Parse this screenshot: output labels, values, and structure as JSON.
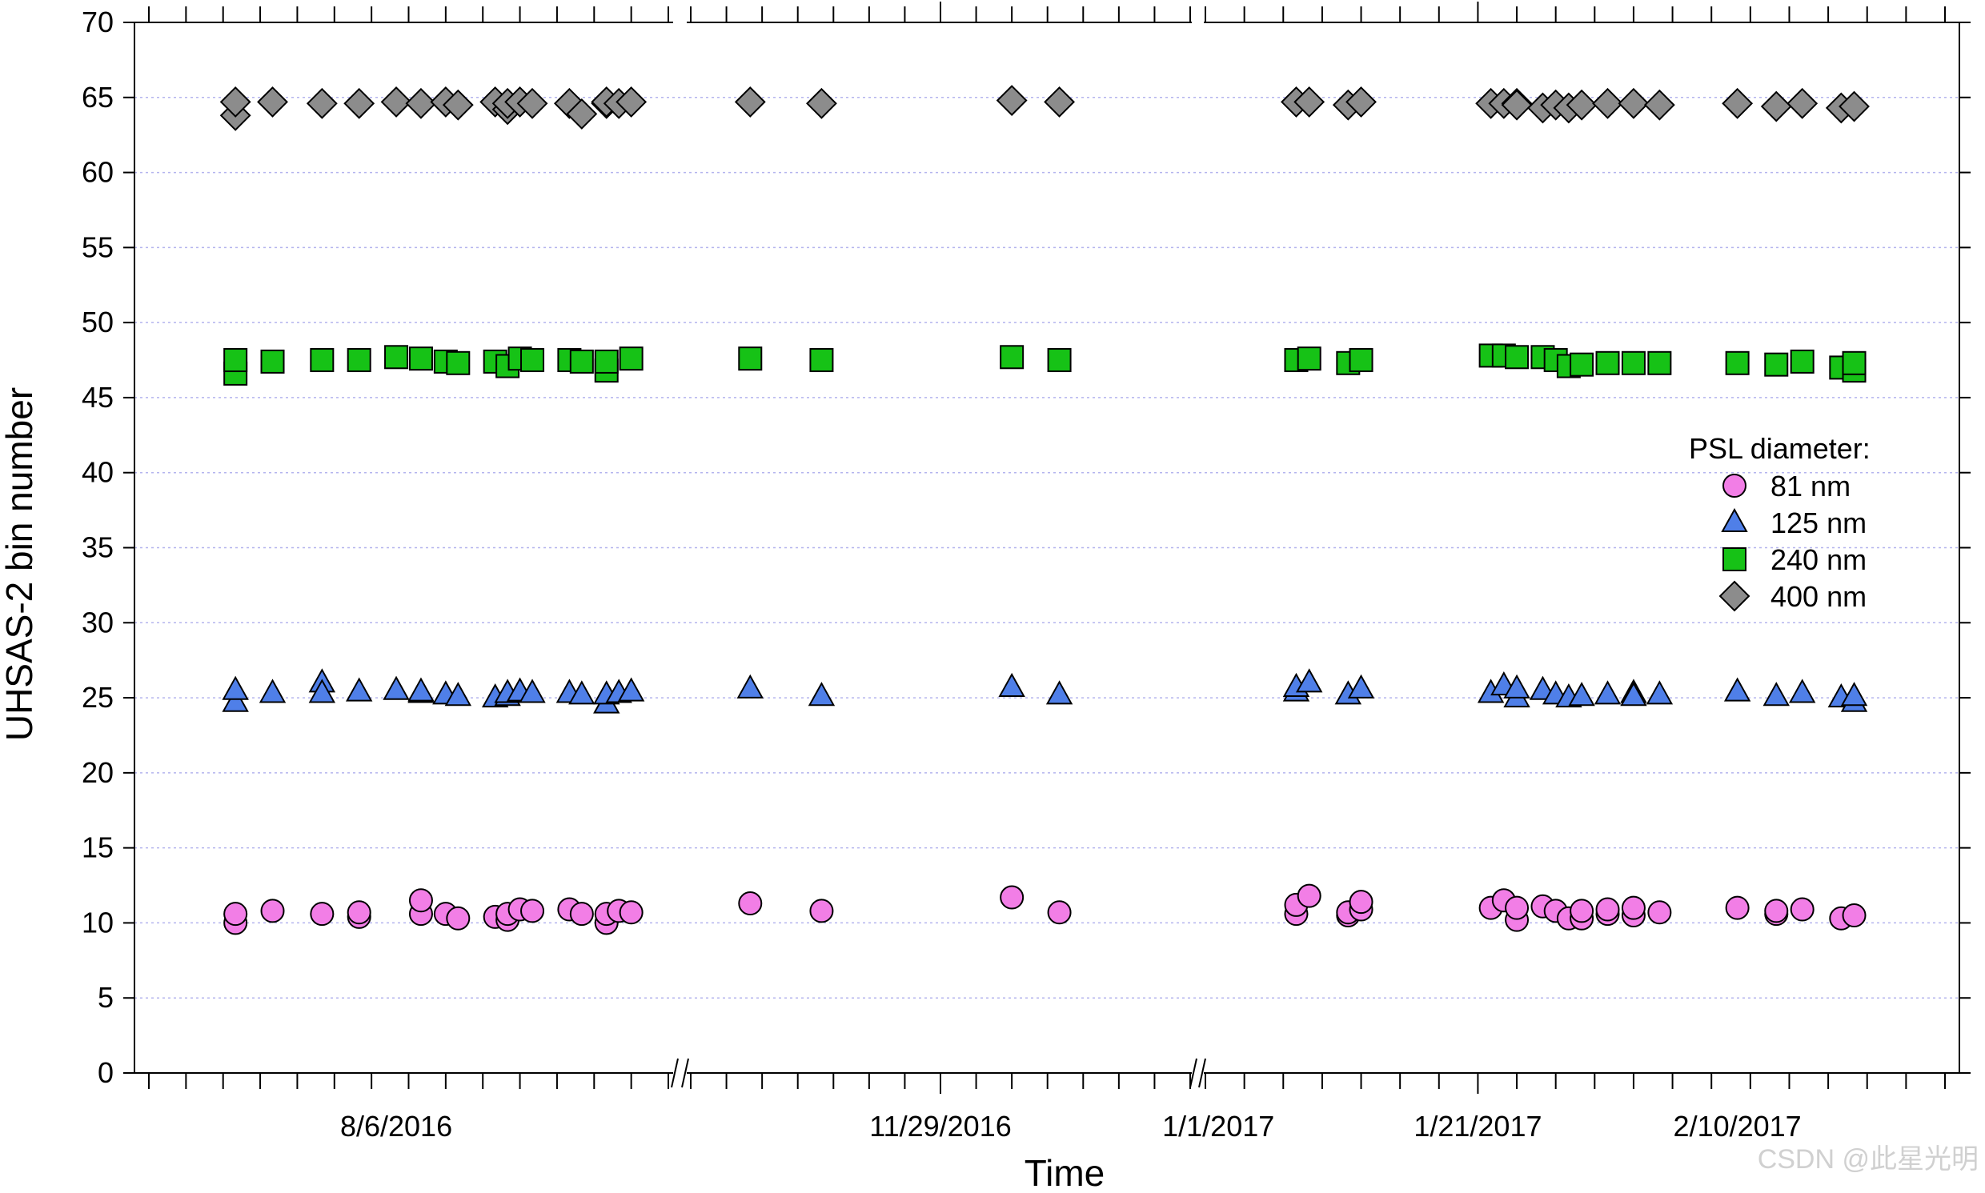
{
  "chart_data": {
    "type": "scatter",
    "title": "",
    "xlabel": "Time",
    "ylabel": "UHSAS-2 bin number",
    "ylim": [
      0,
      70
    ],
    "yticks": [
      0,
      5,
      10,
      15,
      20,
      25,
      30,
      35,
      40,
      45,
      50,
      55,
      60,
      65,
      70
    ],
    "grid": true,
    "x_axis_note": "broken time axis with three segments",
    "segments": [
      {
        "range": [
          "2016-07-17",
          "2016-08-28"
        ],
        "major_ticks": [
          {
            "date": "2016-08-06",
            "label": "8/6/2016"
          }
        ]
      },
      {
        "range": [
          "2016-11-08",
          "2016-12-20"
        ],
        "major_ticks": [
          {
            "date": "2016-11-29",
            "label": "11/29/2016"
          }
        ]
      },
      {
        "range": [
          "2016-12-31",
          "2017-02-26"
        ],
        "major_ticks": [
          {
            "date": "2017-01-01",
            "label": "1/1/2017"
          },
          {
            "date": "2017-01-21",
            "label": "1/21/2017"
          },
          {
            "date": "2017-02-10",
            "label": "2/10/2017"
          }
        ]
      }
    ],
    "legend": {
      "title": "PSL diameter:",
      "position": "right",
      "entries": [
        "81 nm",
        "125 nm",
        "240 nm",
        "400 nm"
      ]
    },
    "series": [
      {
        "name": "81 nm",
        "marker": "circle",
        "color": "#f27ee6",
        "x": [
          "2016-07-24",
          "2016-07-24",
          "2016-07-27",
          "2016-07-31",
          "2016-08-03",
          "2016-08-03",
          "2016-08-08",
          "2016-08-08",
          "2016-08-10",
          "2016-08-11",
          "2016-08-14",
          "2016-08-15",
          "2016-08-15",
          "2016-08-16",
          "2016-08-17",
          "2016-08-20",
          "2016-08-21",
          "2016-08-23",
          "2016-08-23",
          "2016-08-24",
          "2016-08-25",
          "2016-11-13",
          "2016-11-19",
          "2016-12-05",
          "2016-12-09",
          "2017-01-07",
          "2017-01-07",
          "2017-01-08",
          "2017-01-11",
          "2017-01-11",
          "2017-01-12",
          "2017-01-12",
          "2017-01-22",
          "2017-01-23",
          "2017-01-24",
          "2017-01-24",
          "2017-01-26",
          "2017-01-27",
          "2017-01-28",
          "2017-01-29",
          "2017-01-29",
          "2017-01-31",
          "2017-01-31",
          "2017-02-02",
          "2017-02-02",
          "2017-02-04",
          "2017-02-10",
          "2017-02-13",
          "2017-02-13",
          "2017-02-15",
          "2017-02-18",
          "2017-02-19"
        ],
        "y": [
          10.0,
          10.6,
          10.8,
          10.6,
          10.4,
          10.7,
          10.6,
          11.5,
          10.6,
          10.3,
          10.4,
          10.2,
          10.6,
          10.9,
          10.8,
          10.9,
          10.6,
          10.0,
          10.6,
          10.8,
          10.7,
          11.3,
          10.8,
          11.7,
          10.7,
          10.6,
          11.2,
          11.8,
          10.5,
          10.7,
          10.9,
          11.4,
          11.0,
          11.5,
          10.2,
          11.0,
          11.1,
          10.8,
          10.3,
          10.3,
          10.8,
          10.6,
          10.9,
          10.5,
          11.0,
          10.7,
          11.0,
          10.6,
          10.8,
          10.9,
          10.3,
          10.5
        ]
      },
      {
        "name": "125 nm",
        "marker": "triangle",
        "color": "#4f7fe8",
        "x": [
          "2016-07-24",
          "2016-07-24",
          "2016-07-27",
          "2016-07-31",
          "2016-07-31",
          "2016-08-03",
          "2016-08-06",
          "2016-08-08",
          "2016-08-08",
          "2016-08-10",
          "2016-08-11",
          "2016-08-14",
          "2016-08-15",
          "2016-08-15",
          "2016-08-16",
          "2016-08-17",
          "2016-08-20",
          "2016-08-21",
          "2016-08-23",
          "2016-08-23",
          "2016-08-24",
          "2016-08-25",
          "2016-11-13",
          "2016-11-19",
          "2016-12-05",
          "2016-12-09",
          "2017-01-07",
          "2017-01-07",
          "2017-01-08",
          "2017-01-11",
          "2017-01-12",
          "2017-01-22",
          "2017-01-23",
          "2017-01-24",
          "2017-01-24",
          "2017-01-26",
          "2017-01-27",
          "2017-01-28",
          "2017-01-29",
          "2017-01-31",
          "2017-02-02",
          "2017-02-02",
          "2017-02-04",
          "2017-02-10",
          "2017-02-13",
          "2017-02-15",
          "2017-02-18",
          "2017-02-19",
          "2017-02-19"
        ],
        "y": [
          24.7,
          25.5,
          25.3,
          26.0,
          25.3,
          25.4,
          25.5,
          25.3,
          25.4,
          25.2,
          25.1,
          25.0,
          25.1,
          25.3,
          25.4,
          25.3,
          25.3,
          25.2,
          24.6,
          25.2,
          25.3,
          25.4,
          25.6,
          25.1,
          25.7,
          25.2,
          25.4,
          25.7,
          26.0,
          25.2,
          25.6,
          25.3,
          25.8,
          25.0,
          25.6,
          25.5,
          25.2,
          25.0,
          25.1,
          25.2,
          25.3,
          25.1,
          25.2,
          25.4,
          25.1,
          25.3,
          25.0,
          24.7,
          25.1
        ]
      },
      {
        "name": "240 nm",
        "marker": "square",
        "color": "#16c216",
        "x": [
          "2016-07-24",
          "2016-07-24",
          "2016-07-27",
          "2016-07-31",
          "2016-08-03",
          "2016-08-06",
          "2016-08-08",
          "2016-08-10",
          "2016-08-11",
          "2016-08-14",
          "2016-08-15",
          "2016-08-16",
          "2016-08-17",
          "2016-08-20",
          "2016-08-21",
          "2016-08-23",
          "2016-08-23",
          "2016-08-25",
          "2016-11-13",
          "2016-11-19",
          "2016-12-05",
          "2016-12-09",
          "2017-01-07",
          "2017-01-08",
          "2017-01-11",
          "2017-01-12",
          "2017-01-22",
          "2017-01-23",
          "2017-01-24",
          "2017-01-26",
          "2017-01-27",
          "2017-01-28",
          "2017-01-29",
          "2017-01-31",
          "2017-02-02",
          "2017-02-04",
          "2017-02-10",
          "2017-02-13",
          "2017-02-15",
          "2017-02-18",
          "2017-02-19",
          "2017-02-19"
        ],
        "y": [
          46.6,
          47.5,
          47.4,
          47.5,
          47.5,
          47.7,
          47.6,
          47.4,
          47.3,
          47.4,
          47.1,
          47.6,
          47.5,
          47.5,
          47.4,
          46.8,
          47.4,
          47.6,
          47.6,
          47.5,
          47.7,
          47.5,
          47.5,
          47.6,
          47.3,
          47.5,
          47.8,
          47.8,
          47.7,
          47.7,
          47.5,
          47.1,
          47.2,
          47.3,
          47.3,
          47.3,
          47.3,
          47.2,
          47.4,
          47.0,
          46.8,
          47.3
        ]
      },
      {
        "name": "400 nm",
        "marker": "diamond",
        "color": "#8c8c8c",
        "x": [
          "2016-07-24",
          "2016-07-24",
          "2016-07-27",
          "2016-07-31",
          "2016-08-03",
          "2016-08-06",
          "2016-08-08",
          "2016-08-10",
          "2016-08-11",
          "2016-08-14",
          "2016-08-15",
          "2016-08-15",
          "2016-08-16",
          "2016-08-17",
          "2016-08-20",
          "2016-08-21",
          "2016-08-23",
          "2016-08-23",
          "2016-08-24",
          "2016-08-25",
          "2016-11-13",
          "2016-11-19",
          "2016-12-05",
          "2016-12-09",
          "2017-01-07",
          "2017-01-08",
          "2017-01-11",
          "2017-01-12",
          "2017-01-22",
          "2017-01-23",
          "2017-01-24",
          "2017-01-24",
          "2017-01-26",
          "2017-01-27",
          "2017-01-28",
          "2017-01-29",
          "2017-01-31",
          "2017-02-02",
          "2017-02-04",
          "2017-02-10",
          "2017-02-13",
          "2017-02-15",
          "2017-02-18",
          "2017-02-19"
        ],
        "y": [
          63.8,
          64.7,
          64.7,
          64.6,
          64.6,
          64.7,
          64.6,
          64.7,
          64.5,
          64.7,
          64.2,
          64.6,
          64.7,
          64.6,
          64.6,
          63.9,
          64.6,
          64.7,
          64.6,
          64.7,
          64.7,
          64.6,
          64.8,
          64.7,
          64.7,
          64.7,
          64.5,
          64.7,
          64.6,
          64.6,
          64.6,
          64.5,
          64.3,
          64.5,
          64.3,
          64.5,
          64.6,
          64.6,
          64.5,
          64.6,
          64.4,
          64.6,
          64.3,
          64.4
        ]
      }
    ]
  },
  "watermark": "CSDN @此星光明"
}
